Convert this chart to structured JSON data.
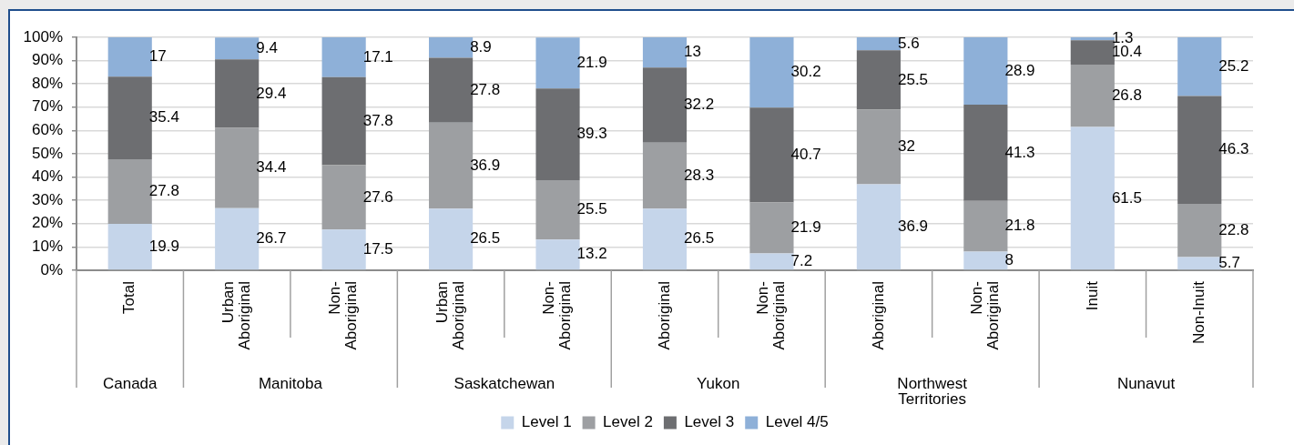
{
  "chart_data": {
    "type": "bar",
    "stacked": true,
    "data_labels": true,
    "grid": "y",
    "legend": "bottom",
    "categories": [
      "Total",
      "Urban Aboriginal",
      "Non-Aboriginal",
      "Urban Aboriginal",
      "Non-Aboriginal",
      "Aboriginal",
      "Non-Aboriginal",
      "Aboriginal",
      "Non-Aboriginal",
      "Inuit",
      "Non-Inuit"
    ],
    "annotations": [
      "Canada",
      "Manitoba",
      "Saskatchewan",
      "Yukon",
      "Northwest Territories",
      "Nunavut"
    ],
    "series": [
      {
        "name": "Level 1",
        "color": "#c5d5ea",
        "values": [
          19.9,
          26.7,
          17.5,
          26.5,
          13.2,
          26.5,
          7.2,
          36.9,
          8,
          61.5,
          5.7
        ]
      },
      {
        "name": "Level 2",
        "color": "#9d9fa2",
        "values": [
          27.8,
          34.4,
          27.6,
          36.9,
          25.5,
          28.3,
          21.9,
          32,
          21.8,
          26.8,
          22.8
        ]
      },
      {
        "name": "Level 3",
        "color": "#6d6e71",
        "values": [
          35.4,
          29.4,
          37.8,
          27.8,
          39.3,
          32.2,
          40.7,
          25.5,
          41.3,
          10.4,
          46.3
        ]
      },
      {
        "name": "Level 4/5",
        "color": "#8eb0d8",
        "values": [
          17,
          9.4,
          17.1,
          8.9,
          21.9,
          13,
          30.2,
          5.6,
          28.9,
          1.3,
          25.2
        ]
      }
    ],
    "ylim": [
      0,
      100
    ],
    "yticks": [
      {
        "value": 0,
        "label": "0%"
      },
      {
        "value": 10,
        "label": "10%"
      },
      {
        "value": 20,
        "label": "20%"
      },
      {
        "value": 30,
        "label": "30%"
      },
      {
        "value": 40,
        "label": "40%"
      },
      {
        "value": 50,
        "label": "50%"
      },
      {
        "value": 60,
        "label": "60%"
      },
      {
        "value": 70,
        "label": "70%"
      },
      {
        "value": 80,
        "label": "80%"
      },
      {
        "value": 90,
        "label": "90%"
      },
      {
        "value": 100,
        "label": "100%"
      }
    ]
  }
}
